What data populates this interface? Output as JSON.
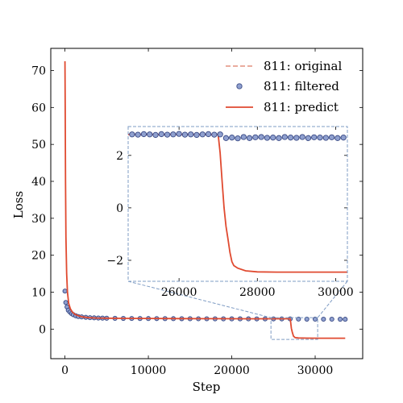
{
  "chart_data": {
    "type": "line",
    "title": "",
    "xlabel": "Step",
    "ylabel": "Loss",
    "xlim": [
      -1700,
      35700
    ],
    "ylim": [
      -8,
      76
    ],
    "xticks": [
      0,
      10000,
      20000,
      30000
    ],
    "yticks": [
      0,
      10,
      20,
      30,
      40,
      50,
      60,
      70
    ],
    "legend_position": "top-right",
    "series": [
      {
        "name": "811: original",
        "style": "dashed",
        "color": "#e8a090"
      },
      {
        "name": "811: filtered",
        "style": "markers",
        "color": "#8fa0cf",
        "edge_color": "#3a4a85",
        "x": [
          0,
          100,
          250,
          400,
          600,
          800,
          1000,
          1300,
          1600,
          2000,
          2500,
          3000,
          3500,
          4000,
          4500,
          5000,
          6000,
          7000,
          8000,
          9000,
          10000,
          11000,
          12000,
          13000,
          14000,
          15000,
          16000,
          17000,
          18000,
          19000,
          20000,
          21000,
          22000,
          23000,
          24000,
          25000,
          26000,
          27000,
          28000,
          29000,
          30000,
          31000,
          32000,
          33000,
          33600
        ],
        "y": [
          10.3,
          7.2,
          6.0,
          5.1,
          4.6,
          4.2,
          3.9,
          3.6,
          3.4,
          3.3,
          3.2,
          3.1,
          3.05,
          3.0,
          2.98,
          2.95,
          2.92,
          2.9,
          2.88,
          2.87,
          2.86,
          2.85,
          2.84,
          2.83,
          2.82,
          2.81,
          2.8,
          2.8,
          2.79,
          2.79,
          2.78,
          2.78,
          2.78,
          2.77,
          2.77,
          2.77,
          2.77,
          2.77,
          2.72,
          2.7,
          2.7,
          2.69,
          2.69,
          2.68,
          2.67
        ]
      },
      {
        "name": "811: predict",
        "style": "solid",
        "color": "#e04a30",
        "x": [
          0,
          30,
          70,
          120,
          200,
          300,
          450,
          650,
          900,
          1200,
          1600,
          2100,
          2800,
          3800,
          5000,
          7000,
          10000,
          14000,
          18000,
          22000,
          26000,
          27000,
          27050,
          27150,
          27250,
          27400,
          27600,
          28000,
          29000,
          30500,
          33600
        ],
        "y": [
          72.5,
          60.0,
          40.0,
          25.0,
          15.0,
          10.0,
          7.0,
          5.5,
          4.6,
          4.0,
          3.6,
          3.3,
          3.1,
          3.0,
          2.95,
          2.9,
          2.88,
          2.85,
          2.82,
          2.8,
          2.8,
          2.79,
          2.1,
          0.2,
          -0.8,
          -1.9,
          -2.3,
          -2.4,
          -2.44,
          -2.45,
          -2.45
        ]
      }
    ],
    "inset": {
      "xlim": [
        24700,
        30300
      ],
      "ylim": [
        -2.8,
        3.1
      ],
      "xticks": [
        26000,
        28000,
        30000
      ],
      "yticks": [
        -2,
        0,
        2
      ],
      "series": [
        {
          "name": "811: filtered",
          "x": [
            24800,
            24950,
            25100,
            25250,
            25400,
            25550,
            25700,
            25850,
            26000,
            26150,
            26300,
            26450,
            26600,
            26750,
            26900,
            27050,
            27200,
            27350,
            27500,
            27650,
            27800,
            27950,
            28100,
            28250,
            28400,
            28550,
            28700,
            28850,
            29000,
            29150,
            29300,
            29450,
            29600,
            29750,
            29900,
            30050,
            30200
          ],
          "y": [
            2.8,
            2.79,
            2.81,
            2.8,
            2.78,
            2.81,
            2.79,
            2.8,
            2.82,
            2.79,
            2.8,
            2.78,
            2.8,
            2.81,
            2.79,
            2.8,
            2.66,
            2.68,
            2.65,
            2.7,
            2.66,
            2.69,
            2.7,
            2.67,
            2.68,
            2.66,
            2.7,
            2.68,
            2.67,
            2.7,
            2.66,
            2.69,
            2.68,
            2.67,
            2.69,
            2.66,
            2.68
          ]
        },
        {
          "name": "811: predict",
          "x": [
            24700,
            26900,
            27000,
            27050,
            27100,
            27150,
            27200,
            27250,
            27300,
            27350,
            27400,
            27500,
            27700,
            28000,
            28500,
            29000,
            30300
          ],
          "y": [
            2.8,
            2.8,
            2.79,
            2.1,
            1.0,
            0.0,
            -0.7,
            -1.2,
            -1.7,
            -2.05,
            -2.2,
            -2.3,
            -2.4,
            -2.44,
            -2.45,
            -2.45,
            -2.45
          ]
        }
      ]
    }
  }
}
